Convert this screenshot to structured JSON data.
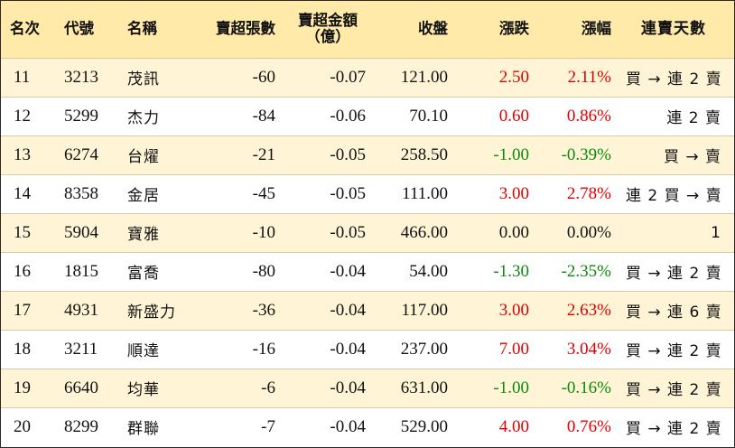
{
  "header": {
    "rank": "名次",
    "code": "代號",
    "name": "名稱",
    "net_sell_lots": "賣超張數",
    "net_sell_amount_line1": "賣超金額",
    "net_sell_amount_line2": "（億）",
    "close": "收盤",
    "change": "漲跌",
    "change_pct": "漲幅",
    "streak": "連賣天數"
  },
  "colors": {
    "header_bg": "#ffeaaa",
    "alt_row_bg": "#fff5d6",
    "up": "#e10000",
    "down": "#0a8a0a"
  },
  "rows": [
    {
      "rank": "11",
      "code": "3213",
      "name": "茂訊",
      "lots": "-60",
      "amount": "-0.07",
      "close": "121.00",
      "change": "2.50",
      "pct": "2.11%",
      "streak": "買 → 連 2 賣",
      "dir": "up"
    },
    {
      "rank": "12",
      "code": "5299",
      "name": "杰力",
      "lots": "-84",
      "amount": "-0.06",
      "close": "70.10",
      "change": "0.60",
      "pct": "0.86%",
      "streak": "連 2 賣",
      "dir": "up"
    },
    {
      "rank": "13",
      "code": "6274",
      "name": "台燿",
      "lots": "-21",
      "amount": "-0.05",
      "close": "258.50",
      "change": "-1.00",
      "pct": "-0.39%",
      "streak": "買 → 賣",
      "dir": "down"
    },
    {
      "rank": "14",
      "code": "8358",
      "name": "金居",
      "lots": "-45",
      "amount": "-0.05",
      "close": "111.00",
      "change": "3.00",
      "pct": "2.78%",
      "streak": "連 2 買 → 賣",
      "dir": "up"
    },
    {
      "rank": "15",
      "code": "5904",
      "name": "寶雅",
      "lots": "-10",
      "amount": "-0.05",
      "close": "466.00",
      "change": "0.00",
      "pct": "0.00%",
      "streak": "1",
      "dir": "flat"
    },
    {
      "rank": "16",
      "code": "1815",
      "name": "富喬",
      "lots": "-80",
      "amount": "-0.04",
      "close": "54.00",
      "change": "-1.30",
      "pct": "-2.35%",
      "streak": "買 → 連 2 賣",
      "dir": "down"
    },
    {
      "rank": "17",
      "code": "4931",
      "name": "新盛力",
      "lots": "-36",
      "amount": "-0.04",
      "close": "117.00",
      "change": "3.00",
      "pct": "2.63%",
      "streak": "買 → 連 6 賣",
      "dir": "up"
    },
    {
      "rank": "18",
      "code": "3211",
      "name": "順達",
      "lots": "-16",
      "amount": "-0.04",
      "close": "237.00",
      "change": "7.00",
      "pct": "3.04%",
      "streak": "買 → 連 2 賣",
      "dir": "up"
    },
    {
      "rank": "19",
      "code": "6640",
      "name": "均華",
      "lots": "-6",
      "amount": "-0.04",
      "close": "631.00",
      "change": "-1.00",
      "pct": "-0.16%",
      "streak": "買 → 連 2 賣",
      "dir": "down"
    },
    {
      "rank": "20",
      "code": "8299",
      "name": "群聯",
      "lots": "-7",
      "amount": "-0.04",
      "close": "529.00",
      "change": "4.00",
      "pct": "0.76%",
      "streak": "買 → 連 2 賣",
      "dir": "up"
    }
  ]
}
